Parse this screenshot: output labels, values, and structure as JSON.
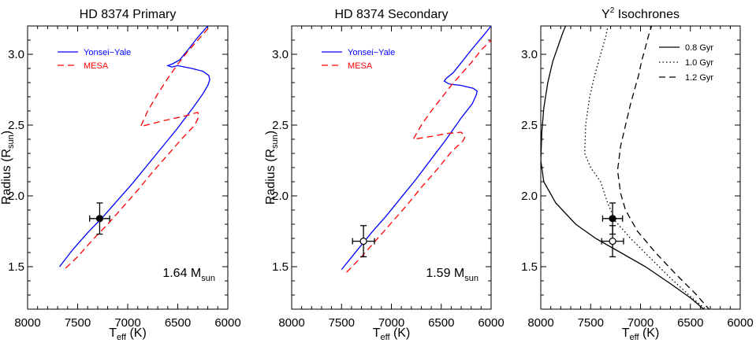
{
  "figure": {
    "colors": {
      "yy": "#0000ff",
      "mesa": "#ff0000",
      "axis": "#000000",
      "data": "#000000"
    }
  },
  "chart_data": [
    {
      "type": "line",
      "title": "HD 8374 Primary",
      "xlabel": {
        "main": "T",
        "sub": "eff",
        "tail": " (K)"
      },
      "ylabel": {
        "main": "Radius (R",
        "sub": "sun",
        "tail": ")"
      },
      "xlim": [
        8000,
        6000
      ],
      "ylim": [
        1.2,
        3.2
      ],
      "xticks": [
        8000,
        7500,
        7000,
        6500,
        6000
      ],
      "xtick_labels": [
        "8000",
        "7500",
        "7000",
        "6500",
        "6000"
      ],
      "yticks": [
        1.5,
        2.0,
        2.5,
        3.0
      ],
      "ytick_labels": [
        "1.5",
        "2.0",
        "2.5",
        "3.0"
      ],
      "legend_position": "top-left",
      "annotation": {
        "main": "1.64 M",
        "sub": "sun"
      },
      "series": [
        {
          "name": "Yonsei−Yale",
          "style": "solid",
          "color": "#0000ff",
          "x": [
            7680,
            7550,
            7400,
            7250,
            7100,
            6950,
            6800,
            6650,
            6500,
            6350,
            6250,
            6200,
            6180,
            6190,
            6250,
            6360,
            6500,
            6560,
            6600,
            6560,
            6480,
            6400,
            6300,
            6200,
            6100
          ],
          "y": [
            1.5,
            1.62,
            1.74,
            1.85,
            1.97,
            2.09,
            2.22,
            2.35,
            2.48,
            2.62,
            2.72,
            2.78,
            2.82,
            2.85,
            2.88,
            2.9,
            2.92,
            2.91,
            2.92,
            2.93,
            2.96,
            3.03,
            3.12,
            3.2,
            3.28
          ]
        },
        {
          "name": "MESA",
          "style": "dashed",
          "color": "#ff0000",
          "x": [
            7620,
            7500,
            7350,
            7200,
            7050,
            6900,
            6750,
            6600,
            6450,
            6330,
            6290,
            6300,
            6450,
            6650,
            6870,
            6800,
            6700,
            6600,
            6500,
            6400,
            6300,
            6200,
            6100
          ],
          "y": [
            1.49,
            1.57,
            1.69,
            1.8,
            1.92,
            2.04,
            2.17,
            2.29,
            2.41,
            2.5,
            2.56,
            2.59,
            2.56,
            2.53,
            2.49,
            2.6,
            2.72,
            2.83,
            2.93,
            3.02,
            3.1,
            3.18,
            3.26
          ]
        }
      ],
      "points": [
        {
          "label": "HD 8374 Primary",
          "teff": 7280,
          "teff_err": 100,
          "radius": 1.84,
          "radius_err": 0.11,
          "marker": "filled"
        }
      ]
    },
    {
      "type": "line",
      "title": "HD 8374 Secondary",
      "xlabel": {
        "main": "T",
        "sub": "eff",
        "tail": " (K)"
      },
      "ylabel": {
        "main": "Radius (R",
        "sub": "sun",
        "tail": ")"
      },
      "xlim": [
        8000,
        6000
      ],
      "ylim": [
        1.2,
        3.2
      ],
      "xticks": [
        8000,
        7500,
        7000,
        6500,
        6000
      ],
      "xtick_labels": [
        "8000",
        "7500",
        "7000",
        "6500",
        "6000"
      ],
      "yticks": [
        1.5,
        2.0,
        2.5,
        3.0
      ],
      "ytick_labels": [
        "1.5",
        "2.0",
        "2.5",
        "3.0"
      ],
      "legend_position": "top-left",
      "annotation": {
        "main": "1.59 M",
        "sub": "sun"
      },
      "series": [
        {
          "name": "Yonsei−Yale",
          "style": "solid",
          "color": "#0000ff",
          "x": [
            7500,
            7350,
            7200,
            7050,
            6900,
            6750,
            6600,
            6450,
            6300,
            6190,
            6150,
            6140,
            6180,
            6300,
            6420,
            6470,
            6450,
            6380,
            6300,
            6200,
            6080,
            6000
          ],
          "y": [
            1.48,
            1.61,
            1.74,
            1.86,
            1.99,
            2.12,
            2.26,
            2.4,
            2.55,
            2.65,
            2.71,
            2.74,
            2.76,
            2.78,
            2.79,
            2.81,
            2.83,
            2.87,
            2.94,
            3.03,
            3.13,
            3.2
          ]
        },
        {
          "name": "MESA",
          "style": "dashed",
          "color": "#ff0000",
          "x": [
            7450,
            7300,
            7150,
            7000,
            6850,
            6700,
            6550,
            6400,
            6280,
            6260,
            6300,
            6450,
            6600,
            6780,
            6700,
            6600,
            6500,
            6400,
            6300,
            6200,
            6100,
            6000
          ],
          "y": [
            1.46,
            1.57,
            1.69,
            1.81,
            1.93,
            2.06,
            2.18,
            2.31,
            2.39,
            2.42,
            2.45,
            2.44,
            2.42,
            2.4,
            2.5,
            2.6,
            2.69,
            2.78,
            2.86,
            2.94,
            3.03,
            3.1
          ]
        }
      ],
      "points": [
        {
          "label": "HD 8374 Secondary",
          "teff": 7280,
          "teff_err": 110,
          "radius": 1.68,
          "radius_err": 0.11,
          "marker": "open"
        }
      ]
    },
    {
      "type": "line",
      "title": {
        "main": "Y",
        "sup": "2",
        "tail": " Isochrones"
      },
      "xlabel": {
        "main": "T",
        "sub": "eff",
        "tail": " (K)"
      },
      "ylabel": {
        "main": "",
        "sub": "",
        "tail": ""
      },
      "xlim": [
        8000,
        6000
      ],
      "ylim": [
        1.2,
        3.2
      ],
      "xticks": [
        8000,
        7500,
        7000,
        6500,
        6000
      ],
      "xtick_labels": [
        "8000",
        "7500",
        "7000",
        "6500",
        "6000"
      ],
      "yticks": [
        1.5,
        2.0,
        2.5,
        3.0
      ],
      "ytick_labels": [
        "1.5",
        "2.0",
        "2.5",
        "3.0"
      ],
      "legend_position": "top-right",
      "series": [
        {
          "name": "0.8 Gyr",
          "style": "solid",
          "color": "#000000",
          "x": [
            6350,
            6500,
            6700,
            6950,
            7200,
            7450,
            7650,
            7850,
            7970,
            8000,
            7990,
            7970,
            7930,
            7880,
            7830,
            7780,
            7740
          ],
          "y": [
            1.19,
            1.28,
            1.38,
            1.5,
            1.6,
            1.7,
            1.8,
            1.95,
            2.1,
            2.25,
            2.45,
            2.62,
            2.8,
            2.95,
            3.05,
            3.15,
            3.22
          ]
        },
        {
          "name": "1.0 Gyr",
          "style": "dotted",
          "color": "#000000",
          "x": [
            6330,
            6500,
            6700,
            6900,
            7100,
            7250,
            7330,
            7400,
            7500,
            7560,
            7550,
            7510,
            7460,
            7400,
            7350,
            7320
          ],
          "y": [
            1.19,
            1.29,
            1.42,
            1.56,
            1.7,
            1.82,
            1.95,
            2.1,
            2.2,
            2.3,
            2.5,
            2.7,
            2.85,
            3.0,
            3.12,
            3.22
          ]
        },
        {
          "name": "1.2 Gyr",
          "style": "dashed",
          "color": "#000000",
          "x": [
            6300,
            6450,
            6650,
            6850,
            7030,
            7150,
            7200,
            7230,
            7200,
            7150,
            7100,
            7060,
            7020,
            6990,
            6950,
            6920,
            6880
          ],
          "y": [
            1.19,
            1.31,
            1.45,
            1.6,
            1.75,
            1.9,
            2.02,
            2.18,
            2.35,
            2.5,
            2.65,
            2.75,
            2.85,
            2.95,
            3.05,
            3.13,
            3.22
          ]
        }
      ],
      "points": [
        {
          "label": "Primary",
          "teff": 7280,
          "teff_err": 100,
          "radius": 1.84,
          "radius_err": 0.11,
          "marker": "filled"
        },
        {
          "label": "Secondary",
          "teff": 7280,
          "teff_err": 110,
          "radius": 1.68,
          "radius_err": 0.11,
          "marker": "open"
        }
      ]
    }
  ]
}
